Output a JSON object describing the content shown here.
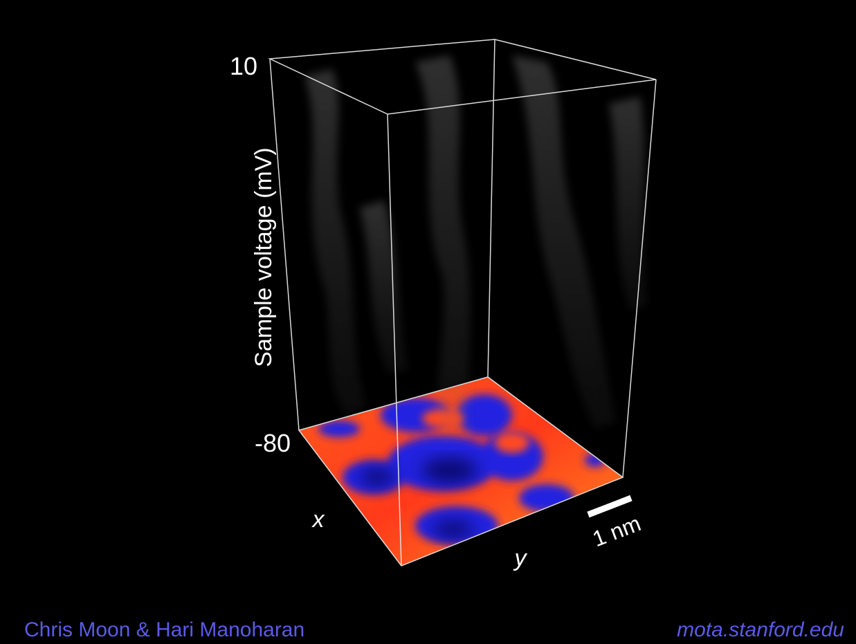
{
  "voltage_axis": {
    "max_label": "10",
    "min_label": "-80",
    "title": "Sample voltage (mV)"
  },
  "floor_axes": {
    "x": "x",
    "y": "y"
  },
  "scale_bar": "1 nm",
  "credits": {
    "authors": "Chris Moon & Hari Manoharan",
    "url": "mota.stanford.edu"
  }
}
